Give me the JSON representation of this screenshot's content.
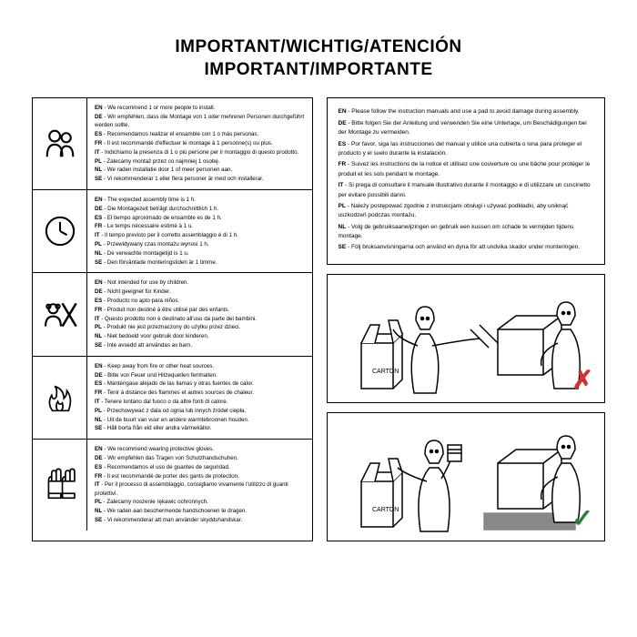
{
  "title_line1": "IMPORTANT/WICHTIG/ATENCIÓN",
  "title_line2": "IMPORTANT/IMPORTANTE",
  "colors": {
    "text": "#000000",
    "bg": "#ffffff",
    "red": "#d32f2f",
    "green": "#2e7d32"
  },
  "left_rows": [
    {
      "icon": "people",
      "lines": [
        {
          "lang": "EN",
          "txt": "We recommend 1 or more people to install."
        },
        {
          "lang": "DE",
          "txt": "Wir empfehlen, dass die Montage von 1 oder mehreren Personen durchgeführt werden sollte."
        },
        {
          "lang": "ES",
          "txt": "Recomendamos realizar el ensamble con 1 o más personas."
        },
        {
          "lang": "FR",
          "txt": "Il est recommandé d'effectuer le montage à 1 personne(s) ou plus."
        },
        {
          "lang": "IT",
          "txt": "Indichiamo la presenza di 1 o più persone per il montaggio di questo prodotto."
        },
        {
          "lang": "PL",
          "txt": "Zalecamy montaż przez co najmniej 1 osobę."
        },
        {
          "lang": "NL",
          "txt": "We raden installatie door 1 of meer personen aan."
        },
        {
          "lang": "SE",
          "txt": "Vi rekommenderar 1 eller flera personer är med och installerar."
        }
      ]
    },
    {
      "icon": "clock",
      "lines": [
        {
          "lang": "EN",
          "txt": "The expected assembly time is 1 h."
        },
        {
          "lang": "DE",
          "txt": "Die Montagezeit beträgt durchschnittlich 1 h."
        },
        {
          "lang": "ES",
          "txt": "El tiempo aproximado de ensamble es de 1 h."
        },
        {
          "lang": "FR",
          "txt": "Le temps nécessaire estimé à 1 u."
        },
        {
          "lang": "IT",
          "txt": "Il tempo previsto per il corretto assemblaggio è di 1 h."
        },
        {
          "lang": "PL",
          "txt": "Przewidywany czas montażu wynosi 1 h."
        },
        {
          "lang": "NL",
          "txt": "De verwachte montagetijd is 1 u."
        },
        {
          "lang": "SE",
          "txt": "Den förväntade monteringstiden är 1 timme."
        }
      ]
    },
    {
      "icon": "nochild",
      "lines": [
        {
          "lang": "EN",
          "txt": "Not intended for use by children."
        },
        {
          "lang": "DE",
          "txt": "Nicht geeignet für Kinder."
        },
        {
          "lang": "ES",
          "txt": "Producto no apto para niños."
        },
        {
          "lang": "FR",
          "txt": "Produit non destiné à être utilisé par des enfants."
        },
        {
          "lang": "IT",
          "txt": "Questo prodotto non è destinato all'uso da parte dei bambini."
        },
        {
          "lang": "PL",
          "txt": "Produkt nie jest przeznaczony do użytku przez dzieci."
        },
        {
          "lang": "NL",
          "txt": "Niet bedoeld voor gebruik door kinderen."
        },
        {
          "lang": "SE",
          "txt": "Inte avsedd att användas av barn."
        }
      ]
    },
    {
      "icon": "fire",
      "lines": [
        {
          "lang": "EN",
          "txt": "Keep away from fire or other heat sources."
        },
        {
          "lang": "DE",
          "txt": "Bitte von Feuer und Hitzequellen fernhalten."
        },
        {
          "lang": "ES",
          "txt": "Manténgase alejado de las llamas y otras fuentes de calor."
        },
        {
          "lang": "FR",
          "txt": "Tenir à distance des flammes et autres sources de chaleur."
        },
        {
          "lang": "IT",
          "txt": "Tenere lontano dal fuoco o da altre fonti di calore."
        },
        {
          "lang": "PL",
          "txt": "Przechowywać z dala od ognia lub innych źródeł ciepła."
        },
        {
          "lang": "NL",
          "txt": "Uit de buurt van vuur en andere warmtebronnen houden."
        },
        {
          "lang": "SE",
          "txt": "Håll borta från eld eller andra värmekällor."
        }
      ]
    },
    {
      "icon": "gloves",
      "lines": [
        {
          "lang": "EN",
          "txt": "We recommend wearing protective gloves."
        },
        {
          "lang": "DE",
          "txt": "Wir empfehlen das Tragen von Schutzhandschuhen."
        },
        {
          "lang": "ES",
          "txt": "Recomendamos el uso de guantes de seguridad."
        },
        {
          "lang": "FR",
          "txt": "Il est recommandé de porter des gants de protection."
        },
        {
          "lang": "IT",
          "txt": "Per il processo di assemblaggio, consigliamo vivamente l'utilizzo di guanti protettivi."
        },
        {
          "lang": "PL",
          "txt": "Zalecamy noszenie rękawic ochronnych."
        },
        {
          "lang": "NL",
          "txt": "We raden aan beschermende handschoenen te dragen."
        },
        {
          "lang": "SE",
          "txt": "Vi rekommenderar att man använder skyddshandskar."
        }
      ]
    }
  ],
  "right_top": [
    {
      "lang": "EN",
      "txt": "Please follow the instruction manuals and use a pad to avoid damage during assembly."
    },
    {
      "lang": "DE",
      "txt": "Bitte folgen Sie der Anleitung und verwenden Sie eine Unterlage, um Beschädigungen bei der Montage zu vermeiden."
    },
    {
      "lang": "ES",
      "txt": "Por favor, siga las instrucciones del manual y utilice una cubierta o lona para proteger el producto y el suelo durante la instalación."
    },
    {
      "lang": "FR",
      "txt": "Suivez les instructions de la notice et utilisez une couverture ou une bâche pour protéger le produit et les sols pendant le montage."
    },
    {
      "lang": "IT",
      "txt": "Si prega di consultare il manuale illustrativo durante il montaggio e di utilizzare un cuscinetto per evitare possibili danni."
    },
    {
      "lang": "PL",
      "txt": "Należy postępować zgodnie z instrukcjami obsługi i używać podkładki, aby uniknąć uszkodzeń podczas montażu."
    },
    {
      "lang": "NL",
      "txt": "Volg de gebruiksaanwijzingen en gebruik een kussen om schade te vermijden tijdens montage."
    },
    {
      "lang": "SE",
      "txt": "Följ bruksanvisningarna och använd en dyna för att undvika skador under monteringen."
    }
  ],
  "carton_label": "CARTON",
  "mark_no": "✗",
  "mark_yes": "✓"
}
